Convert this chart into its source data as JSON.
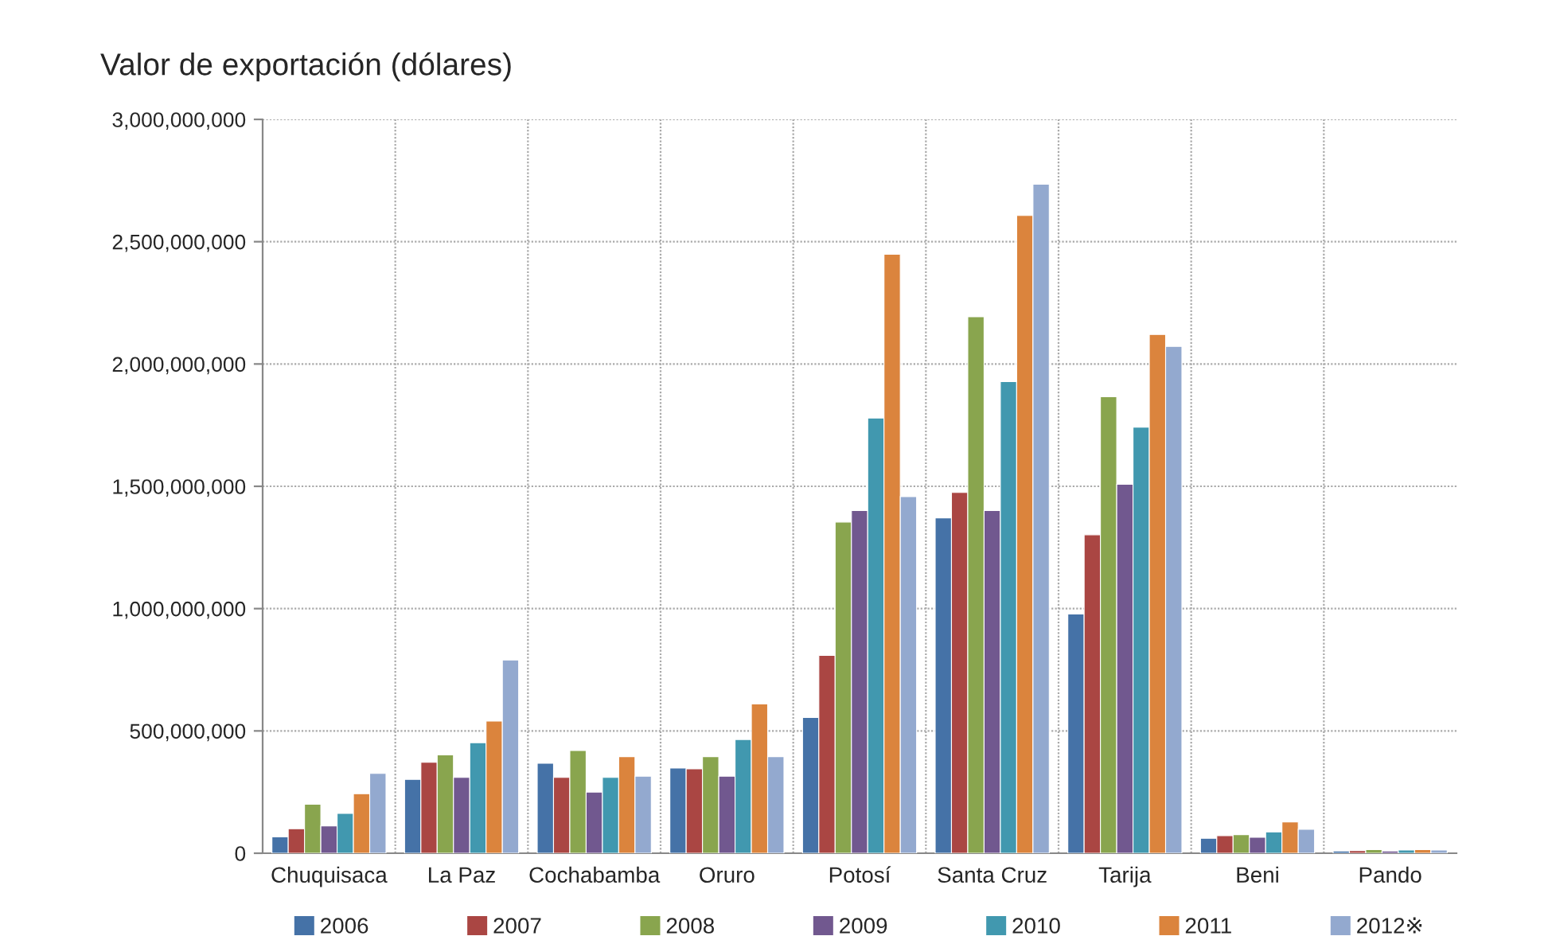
{
  "chart_data": {
    "type": "bar",
    "title": "Valor de exportación (dólares)",
    "categories": [
      "Chuquisaca",
      "La Paz",
      "Cochabamba",
      "Oruro",
      "Potosí",
      "Santa Cruz",
      "Tarija",
      "Beni",
      "Pando"
    ],
    "series": [
      {
        "name": "2006",
        "color": "#4572a7",
        "values": [
          67000000,
          302000000,
          368000000,
          348000000,
          555000000,
          1371000000,
          978000000,
          61000000,
          9000000
        ]
      },
      {
        "name": "2007",
        "color": "#aa4643",
        "values": [
          100000000,
          372000000,
          310000000,
          345000000,
          809000000,
          1475000000,
          1302000000,
          72000000,
          11000000
        ]
      },
      {
        "name": "2008",
        "color": "#89a54e",
        "values": [
          200000000,
          402000000,
          420000000,
          395000000,
          1354000000,
          2193000000,
          1866000000,
          76000000,
          15000000
        ]
      },
      {
        "name": "2009",
        "color": "#71588f",
        "values": [
          112000000,
          310000000,
          250000000,
          315000000,
          1401000000,
          1401000000,
          1508000000,
          65000000,
          9000000
        ]
      },
      {
        "name": "2010",
        "color": "#4198af",
        "values": [
          163000000,
          452000000,
          310000000,
          465000000,
          1779000000,
          1928000000,
          1742000000,
          87000000,
          13000000
        ]
      },
      {
        "name": "2011",
        "color": "#db843d",
        "values": [
          243000000,
          540000000,
          395000000,
          610000000,
          2449000000,
          2607000000,
          2121000000,
          128000000,
          15000000
        ]
      },
      {
        "name": "2012※",
        "color": "#93a9cf",
        "values": [
          326000000,
          790000000,
          315000000,
          395000000,
          1458000000,
          2735000000,
          2072000000,
          98000000,
          13000000
        ]
      }
    ],
    "ylim": [
      0,
      3000000000
    ],
    "yticks": [
      {
        "value": 0,
        "label": "0"
      },
      {
        "value": 500000000,
        "label": "500,000,000"
      },
      {
        "value": 1000000000,
        "label": "1,000,000,000"
      },
      {
        "value": 1500000000,
        "label": "1,500,000,000"
      },
      {
        "value": 2000000000,
        "label": "2,000,000,000"
      },
      {
        "value": 2500000000,
        "label": "2,500,000,000"
      },
      {
        "value": 3000000000,
        "label": "3,000,000,000"
      }
    ],
    "grid": true,
    "legend": "bottom"
  }
}
